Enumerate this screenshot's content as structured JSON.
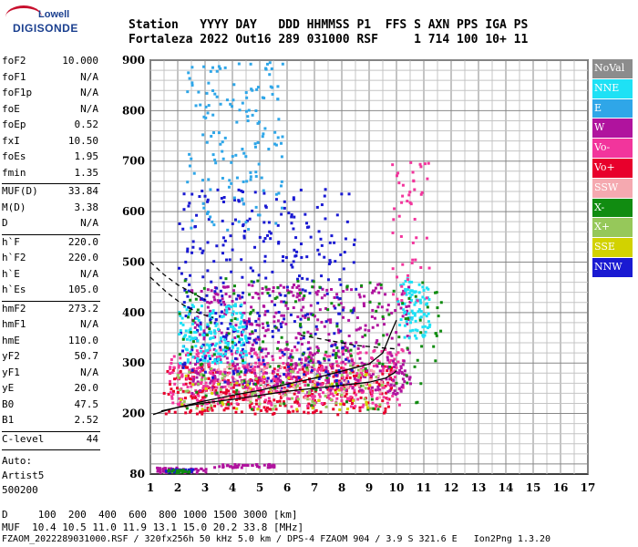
{
  "logo": {
    "line1": "Lowell",
    "line2": "DIGISONDE"
  },
  "header": {
    "row1": "Station   YYYY DAY   DDD HHMMSS P1  FFS S AXN PPS IGA PS",
    "row2": "Fortaleza 2022 Out16 289 031000 RSF     1 714 100 10+ 11"
  },
  "params": {
    "g1": [
      [
        "foF2",
        "10.000"
      ],
      [
        "foF1",
        "N/A"
      ],
      [
        "foF1p",
        "N/A"
      ],
      [
        "foE",
        "N/A"
      ],
      [
        "foEp",
        "0.52"
      ],
      [
        "fxI",
        "10.50"
      ],
      [
        "foEs",
        "1.95"
      ],
      [
        "fmin",
        "1.35"
      ]
    ],
    "g2": [
      [
        "MUF(D)",
        "33.84"
      ],
      [
        "M(D)",
        "3.38"
      ],
      [
        "D",
        "N/A"
      ]
    ],
    "g3": [
      [
        "h`F",
        "220.0"
      ],
      [
        "h`F2",
        "220.0"
      ],
      [
        "h`E",
        "N/A"
      ],
      [
        "h`Es",
        "105.0"
      ]
    ],
    "g4": [
      [
        "hmF2",
        "273.2"
      ],
      [
        "hmF1",
        "N/A"
      ],
      [
        "hmE",
        "110.0"
      ],
      [
        "yF2",
        "50.7"
      ],
      [
        "yF1",
        "N/A"
      ],
      [
        "yE",
        "20.0"
      ],
      [
        "B0",
        "47.5"
      ],
      [
        "B1",
        "2.52"
      ]
    ],
    "g5": [
      [
        "C-level",
        "44"
      ]
    ],
    "auto": [
      "Auto:",
      "Artist5",
      "500200"
    ]
  },
  "legend": [
    {
      "label": "NoVal",
      "color": "#8c8c8c"
    },
    {
      "label": "NNE",
      "color": "#1ee1f5"
    },
    {
      "label": "E",
      "color": "#2fa6e8"
    },
    {
      "label": "W",
      "color": "#b0139e"
    },
    {
      "label": "Vo-",
      "color": "#f2359c"
    },
    {
      "label": "Vo+",
      "color": "#e8002c"
    },
    {
      "label": "SSW",
      "color": "#f5a9b0"
    },
    {
      "label": "X-",
      "color": "#118c11"
    },
    {
      "label": "X+",
      "color": "#96c85a"
    },
    {
      "label": "SSE",
      "color": "#d2d200"
    },
    {
      "label": "NNW",
      "color": "#1a1ad2"
    }
  ],
  "footer": {
    "d_row": "D     100  200  400  600  800 1000 1500 3000 [km]",
    "muf_row": "MUF  10.4 10.5 11.0 11.9 13.1 15.0 20.2 33.8 [MHz]",
    "file_row": "FZAOM_2022289031000.RSF / 320fx256h 50 kHz 5.0 km / DPS-4 FZAOM 904 / 3.9 S 321.6 E   Ion2Png 1.3.20"
  },
  "chart_data": {
    "type": "scatter",
    "xlim": [
      1,
      17
    ],
    "ylim": [
      80,
      900
    ],
    "x_ticks": [
      "1",
      "2",
      "3",
      "4",
      "5",
      "6",
      "7",
      "8",
      "9",
      "10",
      "11",
      "12",
      "13",
      "14",
      "15",
      "16",
      "17"
    ],
    "y_ticks": [
      "200",
      "300",
      "400",
      "500",
      "600",
      "700",
      "800",
      "900"
    ],
    "y_tick_values": [
      200,
      300,
      400,
      500,
      600,
      700,
      800,
      900
    ],
    "y_bottom_label": "80",
    "grid": true,
    "traces": [
      {
        "name": "profile",
        "color": "#000000",
        "style": "solid",
        "x": [
          1.1,
          1.5,
          2.0,
          3.0,
          4.0,
          5.0,
          6.0,
          7.0,
          8.0,
          9.0,
          9.6,
          9.9,
          10.0
        ],
        "y": [
          198,
          205,
          212,
          221,
          228,
          236,
          244,
          250,
          256,
          262,
          270,
          280,
          285
        ]
      },
      {
        "name": "trace",
        "color": "#000000",
        "style": "solid",
        "x": [
          1.4,
          2.0,
          3.0,
          4.0,
          5.0,
          6.0,
          7.0,
          8.0,
          9.0,
          9.5,
          9.8,
          10.0
        ],
        "y": [
          205,
          212,
          225,
          236,
          246,
          258,
          270,
          284,
          298,
          320,
          360,
          385
        ]
      },
      {
        "name": "trace-dash",
        "color": "#000000",
        "style": "dashed",
        "x": [
          1.0,
          1.5,
          2.0,
          2.5,
          3.0
        ],
        "y": [
          500,
          475,
          455,
          440,
          425
        ]
      },
      {
        "name": "trace-dash-2",
        "color": "#000000",
        "style": "dashed",
        "x": [
          1.0,
          1.6,
          2.2,
          2.8,
          3.3
        ],
        "y": [
          470,
          440,
          415,
          398,
          390
        ]
      },
      {
        "name": "trace-dash-3",
        "color": "#000000",
        "style": "dashed",
        "x": [
          6.5,
          7.5,
          8.5,
          9.5,
          10.0
        ],
        "y": [
          355,
          345,
          335,
          330,
          328
        ]
      }
    ],
    "clusters": [
      {
        "color": "#e8002c",
        "x": [
          1.4,
          9.8
        ],
        "y": [
          200,
          300
        ],
        "n": 420
      },
      {
        "color": "#f2359c",
        "x": [
          1.6,
          10.2
        ],
        "y": [
          215,
          330
        ],
        "n": 420
      },
      {
        "color": "#b0139e",
        "x": [
          2.4,
          10.5
        ],
        "y": [
          240,
          460
        ],
        "n": 520
      },
      {
        "color": "#1a1ad2",
        "x": [
          2.0,
          8.5
        ],
        "y": [
          250,
          650
        ],
        "n": 380
      },
      {
        "color": "#1ee1f5",
        "x": [
          2.0,
          4.5
        ],
        "y": [
          300,
          420
        ],
        "n": 160
      },
      {
        "color": "#1ee1f5",
        "x": [
          10.0,
          11.2
        ],
        "y": [
          350,
          470
        ],
        "n": 90
      },
      {
        "color": "#2fa6e8",
        "x": [
          2.3,
          5.8
        ],
        "y": [
          560,
          900
        ],
        "n": 150
      },
      {
        "color": "#118c11",
        "x": [
          2.0,
          11.6
        ],
        "y": [
          210,
          470
        ],
        "n": 180
      },
      {
        "color": "#96c85a",
        "x": [
          1.8,
          9.5
        ],
        "y": [
          210,
          300
        ],
        "n": 80
      },
      {
        "color": "#d2d200",
        "x": [
          2.0,
          9.0
        ],
        "y": [
          210,
          280
        ],
        "n": 40
      },
      {
        "color": "#f5a9b0",
        "x": [
          3.0,
          9.5
        ],
        "y": [
          230,
          300
        ],
        "n": 60
      },
      {
        "color": "#b0139e",
        "x": [
          1.2,
          3.0
        ],
        "y": [
          85,
          95
        ],
        "n": 60
      },
      {
        "color": "#b0139e",
        "x": [
          3.3,
          5.5
        ],
        "y": [
          95,
          102
        ],
        "n": 40
      },
      {
        "color": "#1a1ad2",
        "x": [
          1.4,
          2.6
        ],
        "y": [
          86,
          92
        ],
        "n": 30
      },
      {
        "color": "#118c11",
        "x": [
          1.6,
          2.4
        ],
        "y": [
          85,
          91
        ],
        "n": 20
      },
      {
        "color": "#f2359c",
        "x": [
          9.8,
          11.2
        ],
        "y": [
          420,
          700
        ],
        "n": 50
      }
    ]
  }
}
